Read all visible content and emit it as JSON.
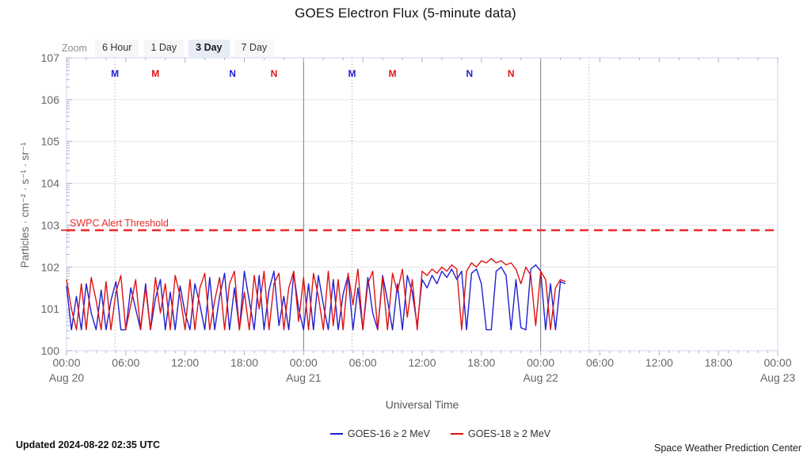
{
  "title": "GOES Electron Flux (5-minute data)",
  "range_selector": {
    "label": "Zoom",
    "buttons": [
      {
        "label": "6 Hour",
        "selected": false
      },
      {
        "label": "1 Day",
        "selected": false
      },
      {
        "label": "3 Day",
        "selected": true
      },
      {
        "label": "7 Day",
        "selected": false
      }
    ]
  },
  "footer": {
    "updated": "Updated 2024-08-22 02:35 UTC",
    "credit": "Space Weather Prediction Center"
  },
  "colors": {
    "goes16_blue": "#1f1fd3",
    "goes18_red": "#e01212",
    "threshold_red": "#ee2e2e",
    "gridline": "#e6e6ec",
    "axis_border": "#ccd6eb",
    "tick": "#aab2c4",
    "day_line": "#7a7a7a",
    "dotted_line": "#999999",
    "axis_text": "#666666"
  },
  "chart_data": {
    "type": "line",
    "title": "GOES Electron Flux (5-minute data)",
    "xlabel": "Universal Time",
    "ylabel": "Particles · cm⁻² · s⁻¹ · sr⁻¹",
    "y_axis": {
      "scale": "log10",
      "min_log": 0,
      "max_log": 7,
      "tick_labels": [
        "100",
        "101",
        "102",
        "103",
        "104",
        "105",
        "106",
        "107"
      ]
    },
    "x_axis": {
      "span_hours": 72,
      "major_tick_hours": 6,
      "minor_tick_hours": 1,
      "ticks": [
        {
          "hour": 0,
          "time": "00:00",
          "date": "Aug 20"
        },
        {
          "hour": 6,
          "time": "06:00"
        },
        {
          "hour": 12,
          "time": "12:00"
        },
        {
          "hour": 18,
          "time": "18:00"
        },
        {
          "hour": 24,
          "time": "00:00",
          "date": "Aug 21"
        },
        {
          "hour": 30,
          "time": "06:00"
        },
        {
          "hour": 36,
          "time": "12:00"
        },
        {
          "hour": 42,
          "time": "18:00"
        },
        {
          "hour": 48,
          "time": "00:00",
          "date": "Aug 22"
        },
        {
          "hour": 54,
          "time": "06:00"
        },
        {
          "hour": 60,
          "time": "12:00"
        },
        {
          "hour": 66,
          "time": "18:00"
        },
        {
          "hour": 72,
          "time": "00:00",
          "date": "Aug 23"
        }
      ]
    },
    "threshold": {
      "label": "SWPC Alert Threshold",
      "log_value": 2.88,
      "color": "#ee2e2e"
    },
    "day_boundary_hours": [
      24,
      48
    ],
    "dotted_plotline_hours": [
      4.9,
      28.9,
      52.9
    ],
    "satellite_markers": [
      {
        "label": "M",
        "hour": 4.9,
        "color": "#1f1fd3"
      },
      {
        "label": "M",
        "hour": 9.0,
        "color": "#e01212"
      },
      {
        "label": "N",
        "hour": 16.8,
        "color": "#1f1fd3"
      },
      {
        "label": "N",
        "hour": 21.0,
        "color": "#e01212"
      },
      {
        "label": "M",
        "hour": 28.9,
        "color": "#1f1fd3"
      },
      {
        "label": "M",
        "hour": 33.0,
        "color": "#e01212"
      },
      {
        "label": "N",
        "hour": 40.8,
        "color": "#1f1fd3"
      },
      {
        "label": "N",
        "hour": 45.0,
        "color": "#e01212"
      }
    ],
    "legend_position": "bottom-center",
    "grid": "horizontal-decade-lines",
    "series": [
      {
        "name": "GOES-16 ≥ 2 MeV",
        "color": "#1f1fd3",
        "t0_hours": 0,
        "dt_hours": 0.5,
        "value_unit": "log10(Particles · cm⁻² · s⁻¹ · sr⁻¹)",
        "log_values": [
          1.55,
          0.5,
          1.3,
          0.5,
          1.6,
          0.9,
          0.5,
          1.45,
          0.5,
          1.2,
          1.65,
          0.5,
          0.5,
          1.5,
          1.0,
          0.5,
          1.6,
          0.5,
          1.25,
          1.7,
          0.5,
          1.4,
          0.5,
          1.55,
          0.9,
          0.5,
          1.6,
          1.1,
          0.5,
          1.75,
          0.5,
          1.3,
          1.85,
          0.5,
          1.5,
          0.5,
          1.9,
          1.2,
          0.5,
          1.8,
          0.5,
          1.45,
          1.9,
          0.6,
          1.3,
          0.5,
          1.85,
          1.0,
          0.5,
          1.6,
          0.5,
          1.8,
          1.1,
          0.5,
          1.7,
          0.5,
          1.35,
          1.8,
          0.5,
          1.5,
          0.5,
          1.75,
          0.9,
          0.5,
          1.8,
          1.2,
          0.5,
          1.6,
          0.5,
          1.8,
          1.4,
          0.6,
          1.7,
          1.5,
          1.8,
          1.6,
          1.9,
          1.75,
          1.95,
          1.7,
          1.9,
          0.5,
          1.85,
          1.95,
          1.6,
          0.5,
          0.5,
          1.9,
          2.0,
          1.8,
          0.5,
          1.7,
          0.55,
          0.5,
          1.95,
          2.05,
          1.9,
          0.5,
          1.6,
          0.5,
          1.65,
          1.6
        ]
      },
      {
        "name": "GOES-18 ≥ 2 MeV",
        "color": "#e01212",
        "t0_hours": 0,
        "dt_hours": 0.5,
        "value_unit": "log10(Particles · cm⁻² · s⁻¹ · sr⁻¹)",
        "log_values": [
          1.7,
          1.0,
          0.5,
          1.6,
          0.5,
          1.75,
          1.2,
          0.5,
          1.65,
          0.5,
          1.4,
          1.8,
          0.5,
          1.1,
          1.7,
          0.5,
          1.5,
          0.5,
          1.75,
          0.9,
          1.6,
          0.5,
          1.8,
          1.3,
          0.5,
          1.7,
          0.5,
          1.5,
          1.85,
          0.5,
          1.2,
          1.75,
          0.5,
          1.6,
          1.9,
          0.5,
          1.4,
          0.5,
          1.8,
          1.0,
          1.9,
          0.5,
          1.6,
          1.85,
          0.5,
          1.5,
          1.9,
          0.7,
          1.75,
          0.5,
          1.85,
          1.3,
          0.5,
          1.9,
          0.6,
          1.7,
          0.5,
          1.85,
          1.1,
          1.95,
          0.5,
          1.6,
          1.9,
          0.5,
          1.75,
          0.5,
          1.85,
          1.4,
          1.95,
          0.8,
          1.7,
          0.5,
          1.9,
          1.8,
          1.95,
          1.85,
          2.0,
          1.9,
          2.05,
          1.95,
          0.5,
          1.9,
          2.1,
          2.0,
          2.15,
          2.1,
          2.2,
          2.1,
          2.15,
          2.05,
          2.1,
          1.95,
          1.6,
          2.0,
          1.8,
          0.6,
          1.9,
          1.7,
          0.5,
          1.5,
          1.7,
          1.65
        ]
      }
    ]
  }
}
